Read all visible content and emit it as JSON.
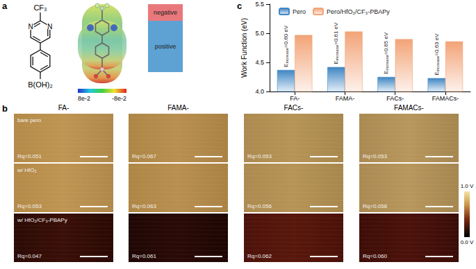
{
  "panel_labels": [
    "a",
    "b",
    "c"
  ],
  "panel_a": {
    "structure_labels": {
      "substituent": "CF₃",
      "ring_atoms": [
        "N",
        "N"
      ],
      "boronic": "B(OH)₂"
    },
    "esp_colorbar": [
      {
        "value": 0.08,
        "label": "8e-2"
      },
      {
        "value": -0.08,
        "label": "-8e-2"
      }
    ],
    "regions": [
      "negative",
      "positive"
    ]
  },
  "panel_b": {
    "columns": [
      "FA-",
      "FAMA-",
      "FACs-",
      "FAMACs-"
    ],
    "rows": [
      "bare pero",
      "w/ HfO₂",
      "w/ HfO₂/CF₃-PBAPy"
    ],
    "rq": [
      [
        "Rq=0.051",
        "Rq=0.067",
        "Rq=0.053",
        "Rq=0.053"
      ],
      [
        "Rq=0.053",
        "Rq=0.063",
        "Rq=0.056",
        "Rq=0.058"
      ],
      [
        "Rq=0.047",
        "Rq=0.061",
        "Rq=0.062",
        "Rq=0.060"
      ]
    ],
    "colorbar": [
      {
        "value": 1.0,
        "label": "1.0 V"
      },
      {
        "value": 0.0,
        "label": "0.0 V"
      }
    ]
  },
  "chart_data": {
    "type": "bar",
    "categories": [
      "FA-",
      "FAMA-",
      "FACs-",
      "FAMACs-"
    ],
    "series": [
      {
        "name": "Pero",
        "color": "#3f86c4",
        "values": [
          4.37,
          4.42,
          4.25,
          4.23
        ]
      },
      {
        "name": "Pero/HfO₂/CF₃-PBAPy",
        "color": "#f2a477",
        "values": [
          4.97,
          5.03,
          4.9,
          4.86
        ]
      }
    ],
    "y_label": "Work Function (eV)",
    "ylim": [
      4.0,
      5.5
    ],
    "yticks": [
      {
        "value": 4.0,
        "label": "4.0"
      },
      {
        "value": 4.5,
        "label": "4.5"
      },
      {
        "value": 5.0,
        "label": "5.0"
      },
      {
        "value": 5.5,
        "label": "5.5"
      }
    ],
    "annotations": [
      {
        "category": "FA-",
        "prefix": "E",
        "subscript": "increase",
        "text": "=0.60 eV"
      },
      {
        "category": "FAMA-",
        "prefix": "E",
        "subscript": "increase",
        "text": "=0.61 eV"
      },
      {
        "category": "FACs-",
        "prefix": "E",
        "subscript": "increase",
        "text": "=0.65 eV"
      },
      {
        "category": "FAMACs-",
        "prefix": "E",
        "subscript": "increase",
        "text": "=0.63 eV"
      }
    ],
    "legend": "upper left",
    "grid": false
  }
}
